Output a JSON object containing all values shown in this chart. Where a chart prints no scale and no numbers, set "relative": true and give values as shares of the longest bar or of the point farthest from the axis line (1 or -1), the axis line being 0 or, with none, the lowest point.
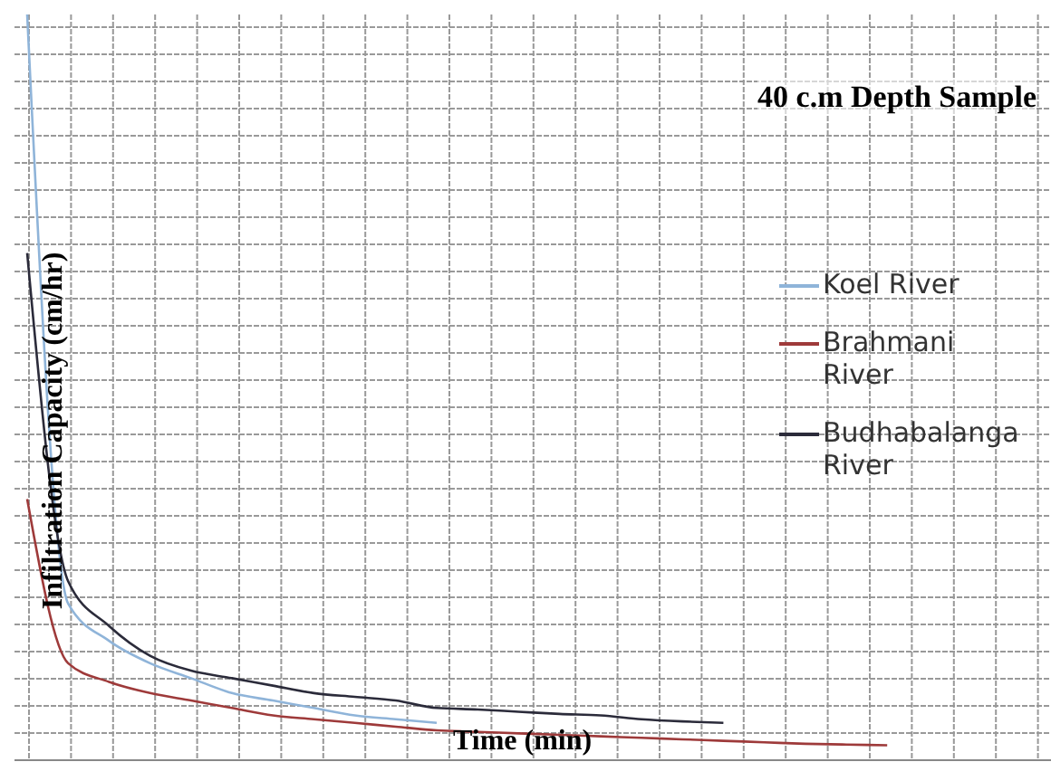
{
  "chart_data": {
    "type": "line",
    "title": "40 c.m Depth Sample",
    "xlabel": "Time (min)",
    "ylabel": "Infiltration Capacity (cm/hr)",
    "relative": true,
    "grid": true,
    "legend": "right",
    "marker": "none",
    "line_style": "solid",
    "categories": [
      null,
      null,
      null,
      null,
      null,
      null,
      null,
      null,
      null,
      null,
      null,
      null,
      null,
      null,
      null,
      null,
      null,
      null,
      null,
      null,
      null,
      null,
      null,
      null,
      null,
      null
    ],
    "series": [
      {
        "name": "Koel River",
        "color": "#8fb4d9",
        "values": [
          1.0,
          0.21,
          0.16,
          0.13,
          0.11,
          0.09,
          0.08,
          0.07,
          0.06,
          0.055,
          0.05,
          null,
          null,
          null,
          null,
          null,
          null,
          null,
          null,
          null,
          null,
          null,
          null,
          null,
          null,
          null
        ]
      },
      {
        "name": "Brahmani River",
        "color": "#9e3a3a",
        "values": [
          0.35,
          0.13,
          0.105,
          0.09,
          0.08,
          0.07,
          0.06,
          0.055,
          0.05,
          0.045,
          0.04,
          0.038,
          0.036,
          0.034,
          0.032,
          0.03,
          0.028,
          0.026,
          0.024,
          0.022,
          0.021,
          0.02,
          null,
          null,
          null,
          null
        ]
      },
      {
        "name": "Budhabalanga River",
        "color": "#2b2b3a",
        "values": [
          0.68,
          0.24,
          0.18,
          0.14,
          0.12,
          0.11,
          0.1,
          0.09,
          0.085,
          0.08,
          0.07,
          0.068,
          0.065,
          0.062,
          0.06,
          0.055,
          0.052,
          0.05,
          null,
          null,
          null,
          null,
          null,
          null,
          null,
          null
        ]
      }
    ]
  }
}
